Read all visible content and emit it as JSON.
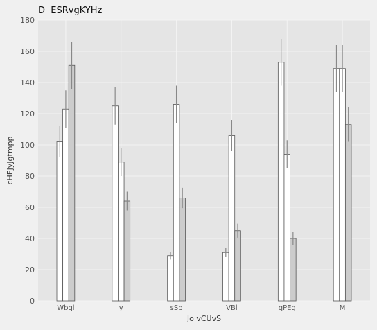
{
  "chart_data": {
    "type": "bar",
    "title": "D  ESRvgKYHz",
    "xlabel": "Jo vCUvS",
    "ylabel": "cHEjyJgtmpp",
    "categories": [
      "Wbql",
      "y",
      "sSp",
      "VBl",
      "qPEg",
      "M"
    ],
    "ylim": [
      0,
      180
    ],
    "yticks": [
      0,
      20,
      40,
      60,
      80,
      100,
      120,
      140,
      160,
      180
    ],
    "grid": true,
    "series": [
      {
        "values": [
          102,
          125,
          29,
          31,
          153,
          149
        ],
        "errors": [
          10,
          12,
          2.5,
          3,
          15,
          15
        ],
        "color": "#ffffff"
      },
      {
        "values": [
          123,
          89,
          126,
          106,
          94,
          149
        ],
        "errors": [
          12,
          9,
          12,
          10,
          9,
          15
        ],
        "color": "#ffffff"
      },
      {
        "values": [
          151,
          64,
          66,
          45,
          40,
          113
        ],
        "errors": [
          15,
          6,
          6.5,
          4.5,
          4,
          11
        ],
        "color": "#cccccc"
      }
    ]
  }
}
